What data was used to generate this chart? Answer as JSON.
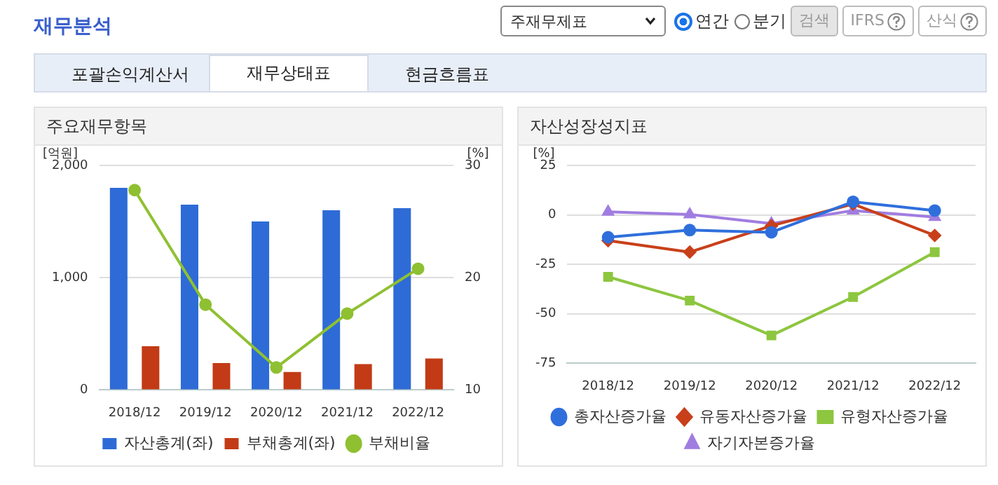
{
  "chart_data": [
    {
      "type": "other",
      "title": "재무분석",
      "annotations": [
        "주재무제표",
        "연간",
        "분기",
        "검색",
        "IFRS",
        "산식",
        "포괄손익계산서",
        "재무상태표",
        "현금흐름표"
      ]
    },
    {
      "type": "bar",
      "title": "주요재무항목",
      "ylabel": "[억원]",
      "y2label": "[%]",
      "categories": [
        "2018/12",
        "2019/12",
        "2020/12",
        "2021/12",
        "2022/12"
      ],
      "series": [
        {
          "name": "자산총계(좌)",
          "color": "#2e6bd6",
          "values": [
            1800,
            1650,
            1500,
            1600,
            1620
          ]
        },
        {
          "name": "부채총계(좌)",
          "color": "#c23b16",
          "values": [
            390,
            240,
            160,
            230,
            280
          ]
        },
        {
          "name": "부채비율",
          "type": "line",
          "axis": "y2",
          "marker": "circle",
          "color": "#8fc031",
          "values": [
            27.8,
            17.6,
            12.0,
            16.8,
            20.8
          ]
        }
      ],
      "ylim": [
        0,
        2000
      ],
      "yticks": [
        0,
        {
          "value": 1000,
          "label": "1,000"
        },
        {
          "value": 2000,
          "label": "2,000"
        }
      ],
      "y2lim": [
        10,
        30
      ],
      "y2ticks": [
        10,
        20,
        30
      ],
      "grid": "y",
      "legend": "bottom"
    },
    {
      "type": "line",
      "title": "자산성장성지표",
      "ylabel": "[%]",
      "categories": [
        "2018/12",
        "2019/12",
        "2020/12",
        "2021/12",
        "2022/12"
      ],
      "series": [
        {
          "name": "총자산증가율",
          "marker": "circle",
          "color": "#2f6fdc",
          "values": [
            -11.3,
            -7.7,
            -8.8,
            6.6,
            2.2
          ]
        },
        {
          "name": "유동자산증가율",
          "marker": "diamond",
          "color": "#c8401a",
          "values": [
            -13,
            -18.8,
            -5.5,
            5.5,
            -10.4
          ]
        },
        {
          "name": "유형자산증가율",
          "marker": "square",
          "color": "#8dc63f",
          "values": [
            -31.3,
            -43.3,
            -60.9,
            -41.5,
            -18.8
          ]
        },
        {
          "name": "자기자본증가율",
          "marker": "triangle",
          "color": "#a07de0",
          "values": [
            1.5,
            0.2,
            -4.4,
            2.2,
            -1.1
          ]
        }
      ],
      "ylim": [
        -75,
        25
      ],
      "yticks": [
        -75,
        -50,
        -25,
        0,
        25
      ],
      "grid": "y",
      "legend": "bottom"
    }
  ]
}
